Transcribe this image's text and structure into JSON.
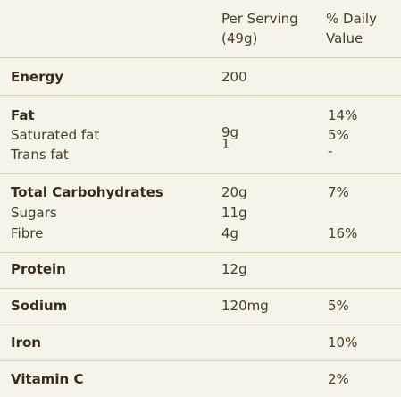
{
  "header": {
    "per_serving_line1": "Per Serving",
    "per_serving_line2": "(49g)",
    "daily_value_line1": "% Daily",
    "daily_value_line2": "Value"
  },
  "energy": {
    "label": "Energy",
    "value": "200"
  },
  "fat": {
    "label": "Fat",
    "daily": "14%",
    "saturated_label": "Saturated fat",
    "saturated_value": "9g",
    "saturated_daily": "5%",
    "trans_label": "Trans fat",
    "trans_value": "1",
    "trans_daily": "-"
  },
  "carbs": {
    "label": "Total Carbohydrates",
    "value": "20g",
    "daily": "7%",
    "sugars_label": "Sugars",
    "sugars_value": "11g",
    "fibre_label": "Fibre",
    "fibre_value": "4g",
    "fibre_daily": "16%"
  },
  "protein": {
    "label": "Protein",
    "value": "12g"
  },
  "sodium": {
    "label": "Sodium",
    "value": "120mg",
    "daily": "5%"
  },
  "iron": {
    "label": "Iron",
    "daily": "10%"
  },
  "vitamin_c": {
    "label": "Vitamin C",
    "daily": "2%"
  }
}
